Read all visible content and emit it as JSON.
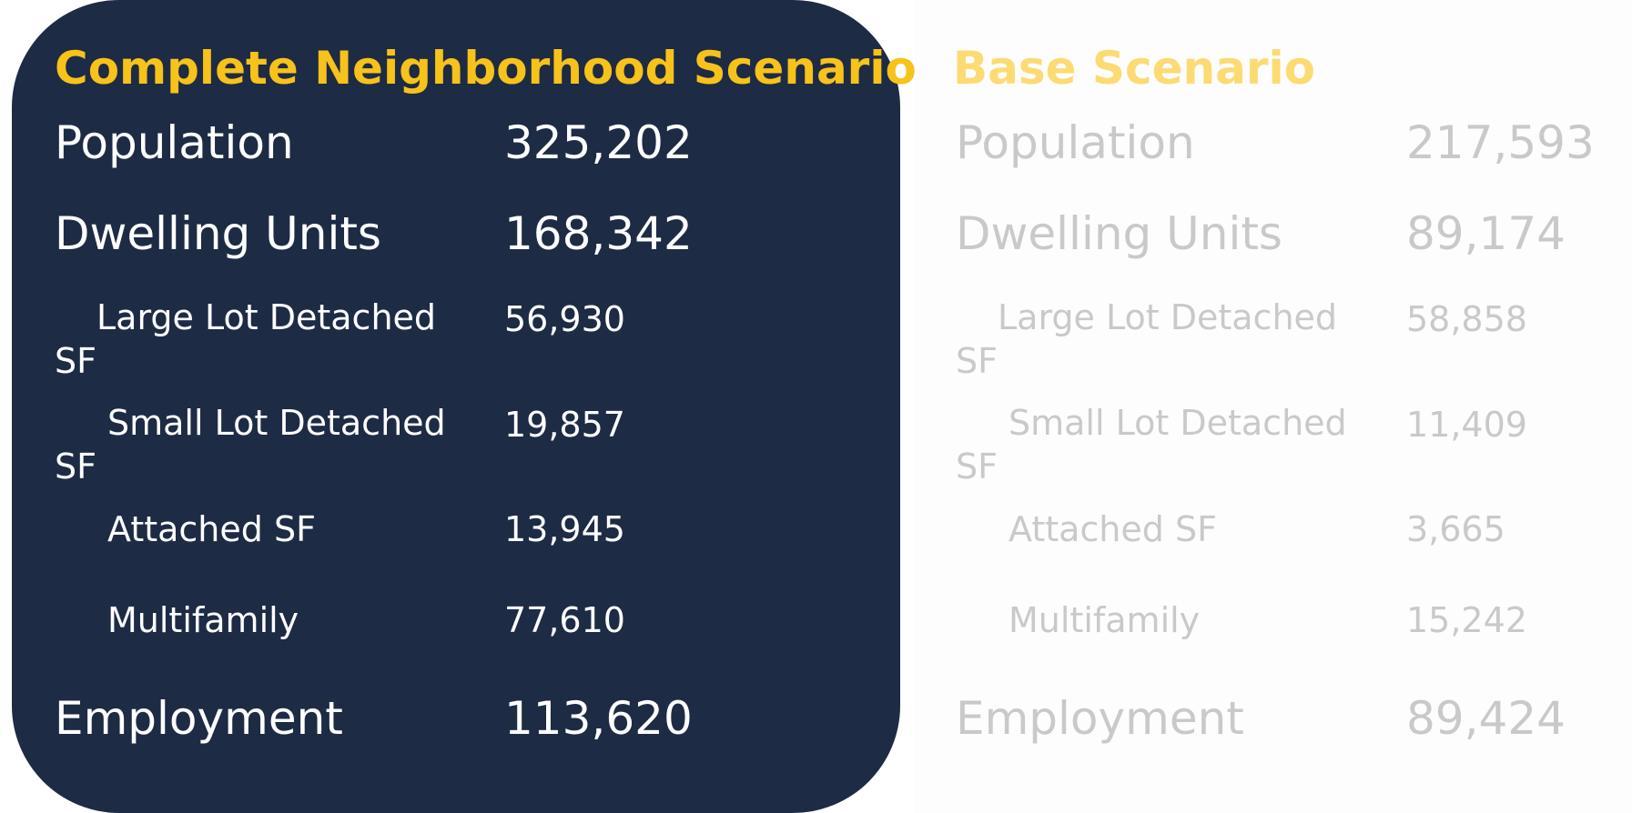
{
  "complete": {
    "title": "Complete Neighborhood Scenario",
    "population": {
      "label": "Population",
      "value": "325,202"
    },
    "dwelling_units": {
      "label": "Dwelling Units",
      "value": "168,342"
    },
    "large_lot": {
      "label": "Large Lot Detached SF",
      "value": "56,930"
    },
    "small_lot": {
      "label": "Small Lot Detached SF",
      "value": "19,857"
    },
    "attached": {
      "label": "Attached SF",
      "value": "13,945"
    },
    "multifamily": {
      "label": "Multifamily",
      "value": "77,610"
    },
    "employment": {
      "label": "Employment",
      "value": "113,620"
    }
  },
  "base": {
    "title": "Base Scenario",
    "population": {
      "label": "Population",
      "value": "217,593"
    },
    "dwelling_units": {
      "label": "Dwelling Units",
      "value": "89,174"
    },
    "large_lot": {
      "label": "Large Lot Detached SF",
      "value": "58,858"
    },
    "small_lot": {
      "label": "Small Lot Detached SF",
      "value": "11,409"
    },
    "attached": {
      "label": "Attached SF",
      "value": "3,665"
    },
    "multifamily": {
      "label": "Multifamily",
      "value": "15,242"
    },
    "employment": {
      "label": "Employment",
      "value": "89,424"
    }
  },
  "colors": {
    "dark_panel": "#1d2b45",
    "complete_title": "#f7c21a",
    "base_title": "#fcdb73",
    "base_text": "#c9c9c9"
  }
}
